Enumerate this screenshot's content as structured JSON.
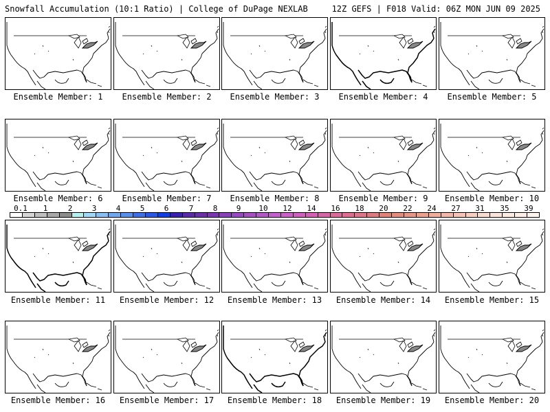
{
  "header": {
    "left": "Snowfall Accumulation (10:1 Ratio) | College of DuPage NEXLAB",
    "right": "12Z GEFS | F018 Valid: 06Z MON JUN 09 2025"
  },
  "members": [
    {
      "label": "Ensemble Member: 1"
    },
    {
      "label": "Ensemble Member: 2"
    },
    {
      "label": "Ensemble Member: 3"
    },
    {
      "label": "Ensemble Member: 4"
    },
    {
      "label": "Ensemble Member: 5"
    },
    {
      "label": "Ensemble Member: 6"
    },
    {
      "label": "Ensemble Member: 7"
    },
    {
      "label": "Ensemble Member: 8"
    },
    {
      "label": "Ensemble Member: 9"
    },
    {
      "label": "Ensemble Member: 10"
    },
    {
      "label": "Ensemble Member: 11"
    },
    {
      "label": "Ensemble Member: 12"
    },
    {
      "label": "Ensemble Member: 13"
    },
    {
      "label": "Ensemble Member: 14"
    },
    {
      "label": "Ensemble Member: 15"
    },
    {
      "label": "Ensemble Member: 16"
    },
    {
      "label": "Ensemble Member: 17"
    },
    {
      "label": "Ensemble Member: 18"
    },
    {
      "label": "Ensemble Member: 19"
    },
    {
      "label": "Ensemble Member: 20"
    }
  ],
  "colorbar": {
    "labels": [
      "0.1",
      "1",
      "2",
      "3",
      "4",
      "5",
      "6",
      "7",
      "8",
      "9",
      "10",
      "12",
      "14",
      "16",
      "18",
      "20",
      "22",
      "24",
      "27",
      "31",
      "35",
      "39"
    ],
    "colors": [
      "#ffffff",
      "#d6d6d6",
      "#c0c0c0",
      "#a8a8a8",
      "#8c8c8c",
      "#b4f0f0",
      "#a0d8f8",
      "#88c0f4",
      "#70a8f0",
      "#5890ec",
      "#4070e8",
      "#2858e4",
      "#1040e0",
      "#3a20b0",
      "#5a2aa8",
      "#6a30a8",
      "#7a38b0",
      "#8a40b8",
      "#9848c0",
      "#a650c4",
      "#b458c8",
      "#c260cc",
      "#cc60c8",
      "#d060c0",
      "#d460b4",
      "#d864a8",
      "#dc689c",
      "#e06c90",
      "#e07488",
      "#e07c80",
      "#e08478",
      "#e48c80",
      "#e89488",
      "#eca090",
      "#f0ac9c",
      "#f4b8a8",
      "#f6c4b4",
      "#f8d0c0",
      "#fadcd0",
      "#fce4da",
      "#fdece4",
      "#fef0e8",
      "#fff4ee"
    ]
  }
}
